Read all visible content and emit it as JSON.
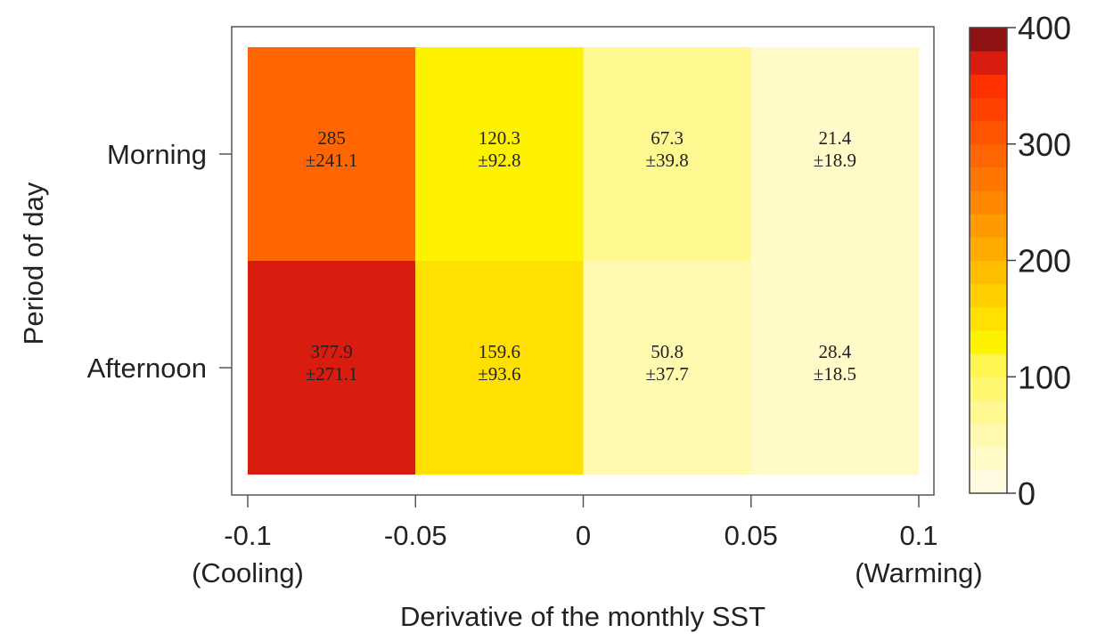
{
  "chart_data": {
    "type": "heatmap",
    "xlabel": "Derivative of the monthly SST",
    "ylabel": "Period of day",
    "x_edges": [
      -0.1,
      -0.05,
      0,
      0.05,
      0.1
    ],
    "x_tick_labels": [
      "-0.1",
      "-0.05",
      "0",
      "0.05",
      "0.1"
    ],
    "x_end_annotations": {
      "left": "(Cooling)",
      "right": "(Warming)"
    },
    "rows": [
      "Morning",
      "Afternoon"
    ],
    "cells": [
      [
        {
          "mean": 285,
          "sd": 241.1,
          "mean_label": "285",
          "sd_label": "±241.1"
        },
        {
          "mean": 120.3,
          "sd": 92.8,
          "mean_label": "120.3",
          "sd_label": "±92.8"
        },
        {
          "mean": 67.3,
          "sd": 39.8,
          "mean_label": "67.3",
          "sd_label": "±39.8"
        },
        {
          "mean": 21.4,
          "sd": 18.9,
          "mean_label": "21.4",
          "sd_label": "±18.9"
        }
      ],
      [
        {
          "mean": 377.9,
          "sd": 271.1,
          "mean_label": "377.9",
          "sd_label": "±271.1"
        },
        {
          "mean": 159.6,
          "sd": 93.6,
          "mean_label": "159.6",
          "sd_label": "±93.6"
        },
        {
          "mean": 50.8,
          "sd": 37.7,
          "mean_label": "50.8",
          "sd_label": "±37.7"
        },
        {
          "mean": 28.4,
          "sd": 18.5,
          "mean_label": "28.4",
          "sd_label": "±18.5"
        }
      ]
    ],
    "colorbar": {
      "range": [
        0,
        400
      ],
      "ticks": [
        0,
        100,
        200,
        300,
        400
      ],
      "tick_labels": [
        "0",
        "100",
        "200",
        "300",
        "400"
      ],
      "levels": 20,
      "colors_low_to_high": [
        "#fffbe0",
        "#fffac8",
        "#fffab0",
        "#fff890",
        "#fff770",
        "#fff550",
        "#fff200",
        "#ffe000",
        "#ffcf00",
        "#ffbd00",
        "#ffab00",
        "#ff9a00",
        "#ff8800",
        "#ff7700",
        "#ff6500",
        "#ff5400",
        "#ff4200",
        "#ff3000",
        "#d81d10",
        "#8e1212"
      ]
    }
  }
}
